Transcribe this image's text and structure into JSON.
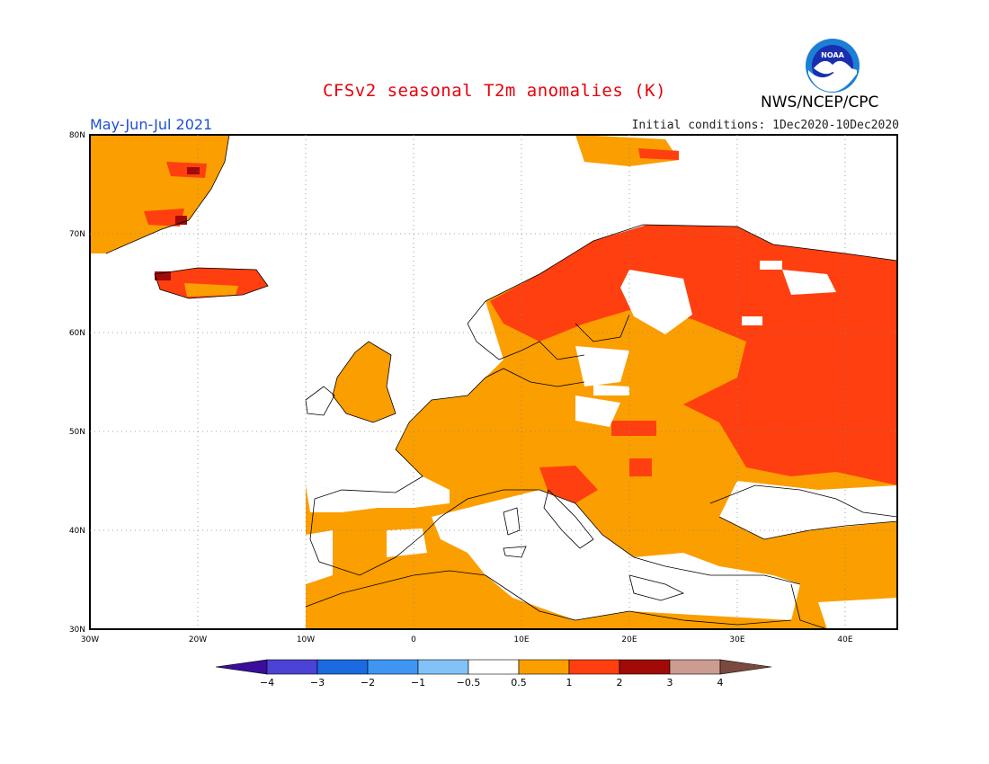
{
  "header": {
    "title": "CFSv2 seasonal T2m anomalies (K)",
    "agency": "NWS/NCEP/CPC",
    "season": "May-Jun-Jul 2021",
    "initial_conditions": "Initial conditions: 1Dec2020-10Dec2020",
    "logo_text": "NOAA"
  },
  "map": {
    "lon_range": [
      -30,
      45
    ],
    "lat_range": [
      30,
      80
    ],
    "lat_labels": [
      "80N",
      "70N",
      "60N",
      "50N",
      "40N",
      "30N"
    ],
    "lon_labels": [
      "30W",
      "20W",
      "10W",
      "0",
      "10E",
      "20E",
      "30E",
      "40E"
    ],
    "grid": true
  },
  "colorbar": {
    "ticks": [
      "-4",
      "-3",
      "-2",
      "-1",
      "-0.5",
      "0.5",
      "1",
      "2",
      "3",
      "4"
    ],
    "colors": [
      "#3a0e9a",
      "#4b42d6",
      "#1a6be0",
      "#3f96f2",
      "#82c2f7",
      "#ffffff",
      "#fb9e00",
      "#ff3f0f",
      "#a10a06",
      "#cc9c90",
      "#7a4a40"
    ]
  }
}
